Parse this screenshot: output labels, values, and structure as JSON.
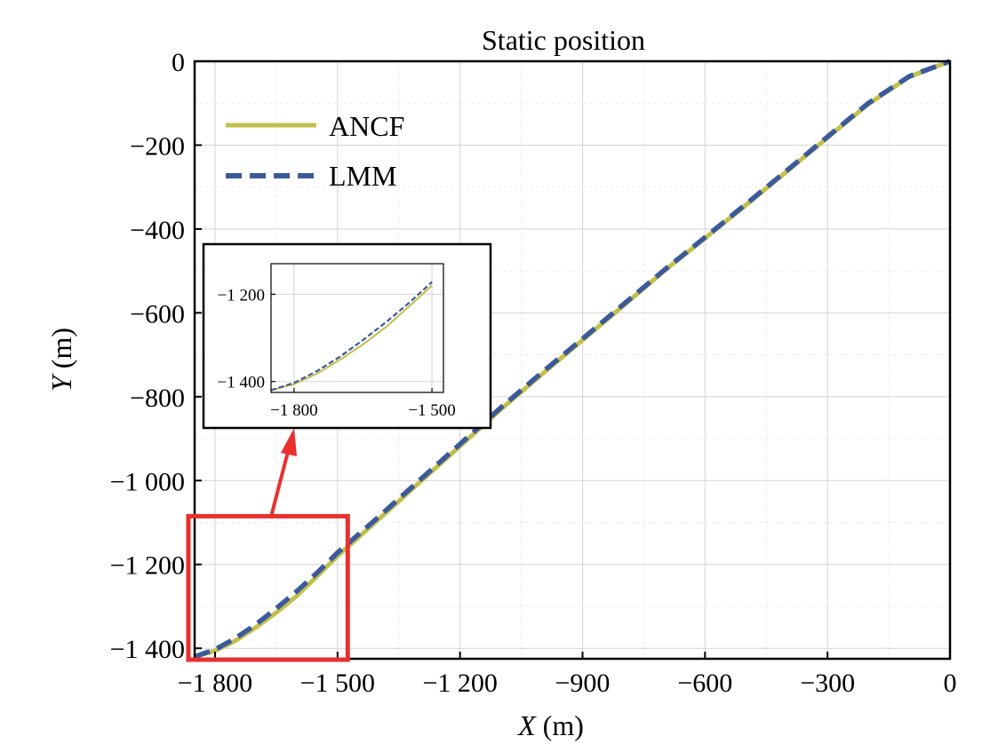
{
  "chart_data": {
    "type": "line",
    "title": "Static position",
    "xlabel_var": "X",
    "xlabel_unit": " (m)",
    "ylabel_var": "Y",
    "ylabel_unit": " (m)",
    "xlim": [
      -1850,
      0
    ],
    "ylim": [
      -1425,
      0
    ],
    "x_ticks": [
      -1800,
      -1500,
      -1200,
      -900,
      -600,
      -300,
      0
    ],
    "x_tick_labels": [
      "−1 800",
      "−1 500",
      "−1 200",
      "−900",
      "−600",
      "−300",
      "0"
    ],
    "y_ticks": [
      0,
      -200,
      -400,
      -600,
      -800,
      -1000,
      -1200,
      -1400
    ],
    "y_tick_labels": [
      "0",
      "−200",
      "−400",
      "−600",
      "−800",
      "−1 000",
      "−1 200",
      "−1 400"
    ],
    "grid": true,
    "legend_position": "top-left",
    "series": [
      {
        "name": "ANCF",
        "color": "#c3bf4b",
        "style": "solid",
        "x": [
          -1850,
          -1800,
          -1750,
          -1700,
          -1650,
          -1600,
          -1550,
          -1500,
          -1400,
          -1300,
          -1200,
          -1100,
          -1000,
          -900,
          -800,
          -700,
          -600,
          -500,
          -400,
          -300,
          -200,
          -100,
          0
        ],
        "y": [
          -1420,
          -1406,
          -1382,
          -1350,
          -1315,
          -1275,
          -1228,
          -1180,
          -1093,
          -1005,
          -918,
          -830,
          -747,
          -665,
          -583,
          -500,
          -422,
          -343,
          -263,
          -182,
          -102,
          -37,
          0
        ]
      },
      {
        "name": "LMM",
        "color": "#3b5a9a",
        "style": "dashed",
        "x": [
          -1850,
          -1800,
          -1750,
          -1700,
          -1650,
          -1600,
          -1550,
          -1500,
          -1400,
          -1300,
          -1200,
          -1100,
          -1000,
          -900,
          -800,
          -700,
          -600,
          -500,
          -400,
          -300,
          -200,
          -100,
          0
        ],
        "y": [
          -1420,
          -1403,
          -1376,
          -1343,
          -1305,
          -1264,
          -1220,
          -1172,
          -1087,
          -1000,
          -913,
          -826,
          -743,
          -662,
          -580,
          -498,
          -420,
          -341,
          -261,
          -180,
          -100,
          -36,
          0
        ]
      }
    ],
    "inset": {
      "xlim": [
        -1850,
        -1475
      ],
      "ylim": [
        -1425,
        -1130
      ],
      "x_ticks": [
        -1800,
        -1500
      ],
      "x_tick_labels": [
        "−1 800",
        "−1 500"
      ],
      "y_ticks": [
        -1200,
        -1400
      ],
      "y_tick_labels": [
        "−1 200",
        "−1 400"
      ],
      "zoom_region_x": [
        -1850,
        -1475
      ],
      "zoom_region_y": [
        -1425,
        -1085
      ]
    }
  },
  "colors": {
    "highlight": "#e8312f",
    "axis": "#000000",
    "grid": "#d3d3d3"
  }
}
